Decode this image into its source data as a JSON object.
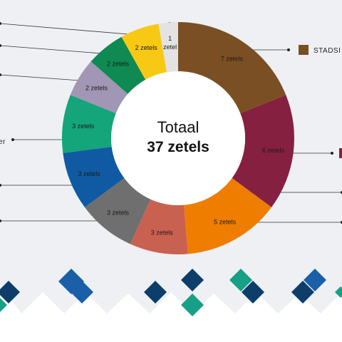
{
  "chart_data": {
    "type": "pie",
    "center": {
      "title": "Totaal",
      "total": "37 zetels"
    },
    "unit": "zetels",
    "slices": [
      {
        "value": 7,
        "label": "7 zetels",
        "color": "#7b4f24",
        "text_light": false
      },
      {
        "value": 6,
        "label": "6 zetels",
        "color": "#862040",
        "text_light": false
      },
      {
        "value": 5,
        "label": "5 zetels",
        "color": "#ef7d00",
        "text_light": false
      },
      {
        "value": 3,
        "label": "3 zetels",
        "color": "#c96150",
        "text_light": false
      },
      {
        "value": 3,
        "label": "3 zetels",
        "color": "#6f6f6f",
        "text_light": false
      },
      {
        "value": 3,
        "label": "3 zetels",
        "color": "#0f5aa3",
        "text_light": false
      },
      {
        "value": 3,
        "label": "3 zetels",
        "color": "#14a57a",
        "text_light": false
      },
      {
        "value": 2,
        "label": "2 zetels",
        "color": "#a196b4",
        "text_light": false
      },
      {
        "value": 2,
        "label": "2 zetels",
        "color": "#0e8a52",
        "text_light": false
      },
      {
        "value": 2,
        "label": "2 zetels",
        "color": "#f7c915",
        "text_light": false
      },
      {
        "value": 1,
        "label": "1\nzetel",
        "color": "#e3e3e3",
        "text_light": false
      }
    ],
    "legend": [
      {
        "label": "STADSI",
        "color": "#7b4f24"
      },
      {
        "label": "er",
        "color": ""
      }
    ],
    "extra_legend_swatch_color": "#862040"
  },
  "decor": {
    "diamond_colors": [
      "#0d3d6b",
      "#1a5fa8",
      "#16a086",
      "#0d3d6b"
    ]
  }
}
